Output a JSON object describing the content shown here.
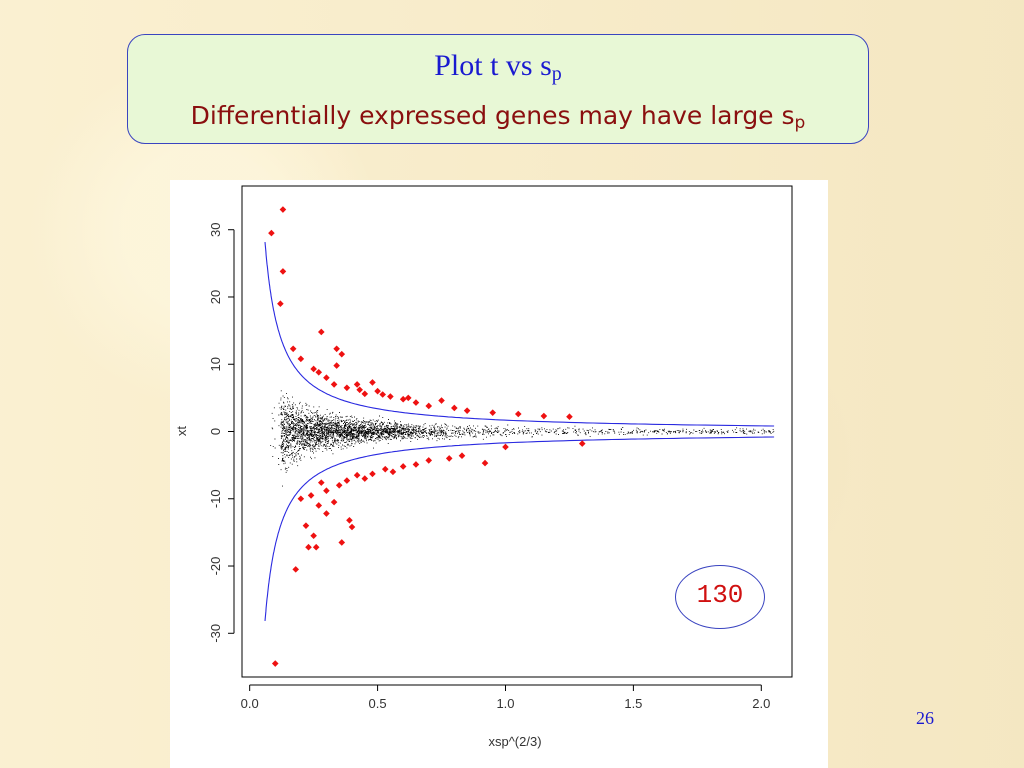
{
  "slide": {
    "title_main": "Plot t vs s",
    "title_main_sub": "p",
    "title_sub": "Differentially expressed genes may have large s",
    "title_sub_sub": "p",
    "count_label": "130",
    "page_number": "26"
  },
  "chart_data": {
    "type": "scatter",
    "xlabel": "xsp^(2/3)",
    "ylabel": "xt",
    "xlim": [
      -0.03,
      2.12
    ],
    "ylim": [
      -36.5,
      36.5
    ],
    "xticks": [
      0.0,
      0.5,
      1.0,
      1.5,
      2.0
    ],
    "xtick_labels": [
      "0.0",
      "0.5",
      "1.0",
      "1.5",
      "2.0"
    ],
    "yticks": [
      -30,
      -20,
      -10,
      0,
      10,
      20,
      30
    ],
    "ytick_labels": [
      "-30",
      "-20",
      "-10",
      "0",
      "10",
      "20",
      "30"
    ],
    "colors": {
      "points": "#000000",
      "highlighted": "#ee1111",
      "curves": "#2a2ae0"
    },
    "threshold_curves": {
      "form": "y = ± 1.69 / x",
      "x_range": [
        0.06,
        2.05
      ]
    },
    "bulk_points": {
      "description_count": "dense black cloud centered at t=0",
      "x_range": [
        0.08,
        2.05
      ]
    },
    "highlighted_genes": [
      [
        0.085,
        29.5
      ],
      [
        0.13,
        33.0
      ],
      [
        0.13,
        23.8
      ],
      [
        0.12,
        19.0
      ],
      [
        0.17,
        12.3
      ],
      [
        0.2,
        10.8
      ],
      [
        0.25,
        9.3
      ],
      [
        0.28,
        14.8
      ],
      [
        0.34,
        12.3
      ],
      [
        0.36,
        11.5
      ],
      [
        0.34,
        9.8
      ],
      [
        0.3,
        8.0
      ],
      [
        0.33,
        7.0
      ],
      [
        0.38,
        6.5
      ],
      [
        0.43,
        6.2
      ],
      [
        0.48,
        7.3
      ],
      [
        0.5,
        6.0
      ],
      [
        0.55,
        5.2
      ],
      [
        0.6,
        4.8
      ],
      [
        0.65,
        4.3
      ],
      [
        0.7,
        3.8
      ],
      [
        0.75,
        4.6
      ],
      [
        0.85,
        3.1
      ],
      [
        0.95,
        2.8
      ],
      [
        1.05,
        2.6
      ],
      [
        1.15,
        2.3
      ],
      [
        1.25,
        2.2
      ],
      [
        0.27,
        8.8
      ],
      [
        0.42,
        7.0
      ],
      [
        0.45,
        5.6
      ],
      [
        0.52,
        5.5
      ],
      [
        0.62,
        5.0
      ],
      [
        0.8,
        3.5
      ],
      [
        0.1,
        -34.5
      ],
      [
        0.18,
        -20.5
      ],
      [
        0.2,
        -10.0
      ],
      [
        0.22,
        -14.0
      ],
      [
        0.25,
        -15.5
      ],
      [
        0.23,
        -17.2
      ],
      [
        0.26,
        -17.2
      ],
      [
        0.27,
        -11.0
      ],
      [
        0.24,
        -9.5
      ],
      [
        0.3,
        -12.2
      ],
      [
        0.36,
        -16.5
      ],
      [
        0.39,
        -13.2
      ],
      [
        0.4,
        -14.2
      ],
      [
        0.3,
        -8.8
      ],
      [
        0.35,
        -8.0
      ],
      [
        0.38,
        -7.3
      ],
      [
        0.42,
        -6.5
      ],
      [
        0.48,
        -6.3
      ],
      [
        0.53,
        -5.6
      ],
      [
        0.6,
        -5.2
      ],
      [
        0.65,
        -4.9
      ],
      [
        0.7,
        -4.3
      ],
      [
        0.78,
        -4.0
      ],
      [
        0.83,
        -3.6
      ],
      [
        0.92,
        -4.7
      ],
      [
        1.0,
        -2.3
      ],
      [
        1.3,
        -1.8
      ],
      [
        0.33,
        -10.5
      ],
      [
        0.45,
        -7.0
      ],
      [
        0.56,
        -6.0
      ],
      [
        0.28,
        -7.6
      ]
    ]
  }
}
